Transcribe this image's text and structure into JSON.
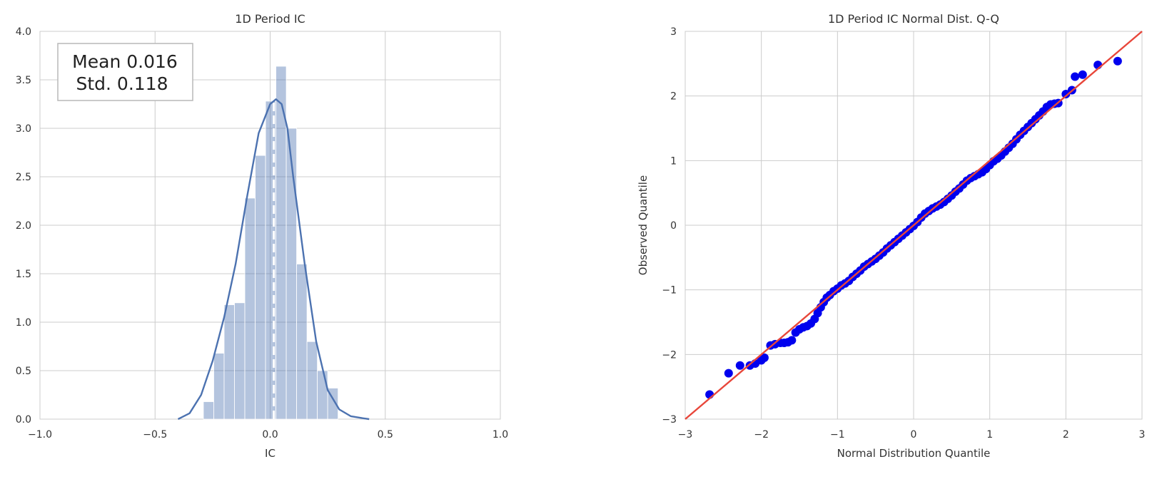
{
  "chart_data": [
    {
      "type": "bar",
      "title": "1D Period IC",
      "xlabel": "IC",
      "ylabel": "",
      "xlim": [
        -1.0,
        1.0
      ],
      "ylim": [
        0.0,
        4.0
      ],
      "grid": true,
      "xticks": [
        -1.0,
        -0.5,
        0.0,
        0.5,
        1.0
      ],
      "xtick_labels": [
        "−1.0",
        "−0.5",
        "0.0",
        "0.5",
        "1.0"
      ],
      "yticks": [
        0.0,
        0.5,
        1.0,
        1.5,
        2.0,
        2.5,
        3.0,
        3.5,
        4.0
      ],
      "ytick_labels": [
        "0.0",
        "0.5",
        "1.0",
        "1.5",
        "2.0",
        "2.5",
        "3.0",
        "3.5",
        "4.0"
      ],
      "bin_edges": [
        -0.29,
        -0.245,
        -0.2,
        -0.155,
        -0.11,
        -0.065,
        -0.02,
        0.025,
        0.07,
        0.115,
        0.16,
        0.205,
        0.25,
        0.295
      ],
      "values": [
        0.18,
        0.68,
        1.18,
        1.2,
        2.28,
        2.72,
        3.28,
        3.64,
        3.0,
        1.6,
        0.8,
        0.5,
        0.32
      ],
      "kde": {
        "x": [
          -0.4,
          -0.35,
          -0.3,
          -0.25,
          -0.2,
          -0.15,
          -0.1,
          -0.05,
          0.0,
          0.025,
          0.05,
          0.075,
          0.1,
          0.15,
          0.2,
          0.25,
          0.3,
          0.35,
          0.4,
          0.43
        ],
        "y": [
          0.0,
          0.06,
          0.25,
          0.6,
          1.05,
          1.6,
          2.3,
          2.95,
          3.25,
          3.3,
          3.25,
          3.0,
          2.5,
          1.6,
          0.8,
          0.3,
          0.1,
          0.03,
          0.01,
          0.0
        ]
      },
      "mean_line": 0.016,
      "annotation": {
        "line1": "Mean 0.016",
        "line2": "Std. 0.118"
      },
      "colors": {
        "bars": "#4c72b0",
        "kde": "#4c72b0",
        "mean_line": "#ffffff"
      }
    },
    {
      "type": "scatter",
      "title": "1D Period IC Normal Dist. Q-Q",
      "xlabel": "Normal Distribution Quantile",
      "ylabel": "Observed Quantile",
      "xlim": [
        -3,
        3
      ],
      "ylim": [
        -3,
        3
      ],
      "grid": true,
      "xticks": [
        -3,
        -2,
        -1,
        0,
        1,
        2,
        3
      ],
      "xtick_labels": [
        "−3",
        "−2",
        "−1",
        "0",
        "1",
        "2",
        "3"
      ],
      "yticks": [
        -3,
        -2,
        -1,
        0,
        1,
        2,
        3
      ],
      "ytick_labels": [
        "−3",
        "−2",
        "−1",
        "0",
        "1",
        "2",
        "3"
      ],
      "points": [
        [
          -2.68,
          -2.62
        ],
        [
          -2.43,
          -2.29
        ],
        [
          -2.28,
          -2.17
        ],
        [
          -2.15,
          -2.17
        ],
        [
          -2.08,
          -2.14
        ],
        [
          -2.0,
          -2.09
        ],
        [
          -1.96,
          -2.05
        ],
        [
          -1.88,
          -1.86
        ],
        [
          -1.82,
          -1.84
        ],
        [
          -1.75,
          -1.82
        ],
        [
          -1.7,
          -1.82
        ],
        [
          -1.65,
          -1.81
        ],
        [
          -1.6,
          -1.78
        ],
        [
          -1.55,
          -1.66
        ],
        [
          -1.5,
          -1.61
        ],
        [
          -1.45,
          -1.58
        ],
        [
          -1.4,
          -1.56
        ],
        [
          -1.35,
          -1.52
        ],
        [
          -1.3,
          -1.45
        ],
        [
          -1.26,
          -1.36
        ],
        [
          -1.22,
          -1.27
        ],
        [
          -1.18,
          -1.19
        ],
        [
          -1.14,
          -1.12
        ],
        [
          -1.1,
          -1.08
        ],
        [
          -1.05,
          -1.02
        ],
        [
          -1.0,
          -0.98
        ],
        [
          -0.95,
          -0.93
        ],
        [
          -0.9,
          -0.9
        ],
        [
          -0.85,
          -0.86
        ],
        [
          -0.8,
          -0.8
        ],
        [
          -0.75,
          -0.75
        ],
        [
          -0.7,
          -0.7
        ],
        [
          -0.65,
          -0.64
        ],
        [
          -0.6,
          -0.6
        ],
        [
          -0.55,
          -0.56
        ],
        [
          -0.5,
          -0.52
        ],
        [
          -0.45,
          -0.47
        ],
        [
          -0.4,
          -0.42
        ],
        [
          -0.35,
          -0.36
        ],
        [
          -0.3,
          -0.31
        ],
        [
          -0.25,
          -0.26
        ],
        [
          -0.2,
          -0.21
        ],
        [
          -0.15,
          -0.16
        ],
        [
          -0.1,
          -0.11
        ],
        [
          -0.05,
          -0.06
        ],
        [
          0.0,
          -0.01
        ],
        [
          0.05,
          0.05
        ],
        [
          0.1,
          0.12
        ],
        [
          0.15,
          0.18
        ],
        [
          0.2,
          0.22
        ],
        [
          0.25,
          0.26
        ],
        [
          0.3,
          0.29
        ],
        [
          0.35,
          0.32
        ],
        [
          0.4,
          0.36
        ],
        [
          0.45,
          0.41
        ],
        [
          0.5,
          0.46
        ],
        [
          0.55,
          0.52
        ],
        [
          0.6,
          0.57
        ],
        [
          0.65,
          0.63
        ],
        [
          0.7,
          0.69
        ],
        [
          0.75,
          0.73
        ],
        [
          0.8,
          0.76
        ],
        [
          0.85,
          0.79
        ],
        [
          0.9,
          0.82
        ],
        [
          0.95,
          0.87
        ],
        [
          1.0,
          0.93
        ],
        [
          1.05,
          0.99
        ],
        [
          1.1,
          1.03
        ],
        [
          1.15,
          1.08
        ],
        [
          1.2,
          1.14
        ],
        [
          1.25,
          1.2
        ],
        [
          1.3,
          1.26
        ],
        [
          1.35,
          1.33
        ],
        [
          1.4,
          1.4
        ],
        [
          1.45,
          1.46
        ],
        [
          1.5,
          1.52
        ],
        [
          1.55,
          1.58
        ],
        [
          1.6,
          1.64
        ],
        [
          1.65,
          1.7
        ],
        [
          1.7,
          1.76
        ],
        [
          1.75,
          1.83
        ],
        [
          1.8,
          1.87
        ],
        [
          1.85,
          1.88
        ],
        [
          1.9,
          1.89
        ],
        [
          2.0,
          2.03
        ],
        [
          2.08,
          2.09
        ],
        [
          2.12,
          2.3
        ],
        [
          2.22,
          2.33
        ],
        [
          2.42,
          2.48
        ],
        [
          2.68,
          2.54
        ]
      ],
      "reference_line": {
        "slope": 1,
        "intercept": 0
      },
      "colors": {
        "points": "#0000ee",
        "reference_line": "#e8463a"
      }
    }
  ]
}
